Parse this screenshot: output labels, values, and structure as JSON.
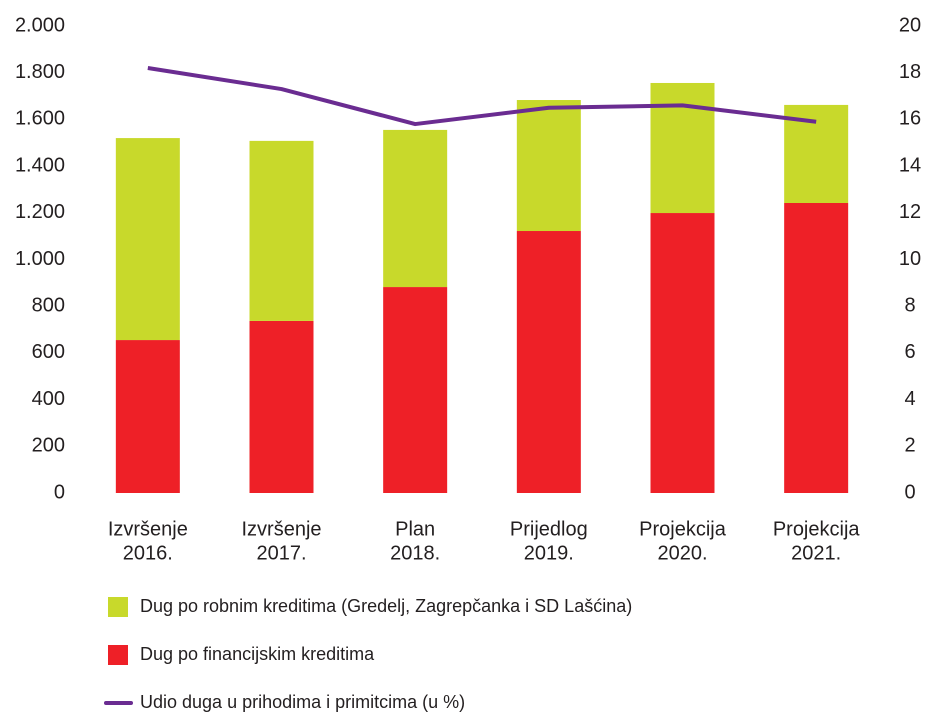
{
  "chart_data": {
    "type": "bar",
    "categories": [
      [
        "Izvršenje",
        "2016."
      ],
      [
        "Izvršenje",
        "2017."
      ],
      [
        "Plan",
        "2018."
      ],
      [
        "Prijedlog",
        "2019."
      ],
      [
        "Projekcija",
        "2020."
      ],
      [
        "Projekcija",
        "2021."
      ]
    ],
    "series": [
      {
        "name": "Dug po robnim kreditima (Gredelj, Zagrepčanka i SD Lašćina)",
        "color": "#c8d92b",
        "type": "bar",
        "values": [
          865,
          771,
          673,
          561,
          557,
          420
        ]
      },
      {
        "name": "Dug po financijskim kreditima",
        "color": "#ee2027",
        "type": "bar",
        "values": [
          655,
          737,
          882,
          1122,
          1199,
          1242
        ]
      },
      {
        "name": "Udio duga u prihodima i primitcima (u %)",
        "color": "#6a2c91",
        "type": "line",
        "axis": "y2",
        "values": [
          18.2,
          17.3,
          15.8,
          16.5,
          16.6,
          15.9
        ]
      }
    ],
    "stacked": true,
    "ylim": [
      0,
      2000
    ],
    "yticks": [
      0,
      200,
      400,
      600,
      800,
      {
        "value": 1000,
        "label": "1.000"
      },
      {
        "value": 1200,
        "label": "1.200"
      },
      {
        "value": 1400,
        "label": "1.400"
      },
      {
        "value": 1600,
        "label": "1.600"
      },
      {
        "value": 1800,
        "label": "1.800"
      },
      {
        "value": 2000,
        "label": "2.000"
      }
    ],
    "y2lim": [
      0,
      20
    ],
    "y2ticks": [
      0,
      2,
      4,
      6,
      8,
      10,
      12,
      14,
      16,
      18,
      20
    ],
    "grid": false,
    "legend": "bottom"
  }
}
